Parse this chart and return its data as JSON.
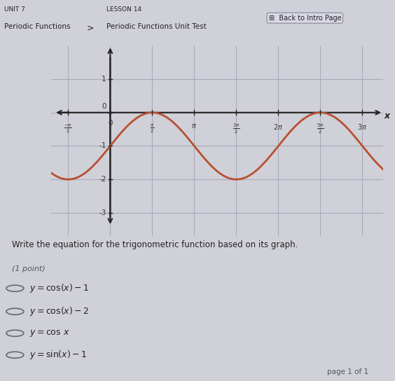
{
  "page_bg": "#d0d0d8",
  "graph_bg": "#e8e8ee",
  "header_bg": "#c8c8d2",
  "grid_color": "#aaaabb",
  "axis_color": "#222222",
  "curve_color": "#b85030",
  "curve_linewidth": 2.0,
  "text_color": "#222222",
  "label_color": "#333333",
  "subtext_color": "#555566",
  "title_top": "UNIT 7",
  "title_sub": "Periodic Functions",
  "lesson_title": "LESSON 14",
  "lesson_sub": "Periodic Functions Unit Test",
  "back_btn": "⊞  Back to Intro Page",
  "question_text": "Write the equation for the trigonometric function based on its graph.",
  "point_text": "(1 point)",
  "choice_labels": [
    "y = \\cos(x) - 1",
    "y = \\cos(x) - 2",
    "y = \\cos x",
    "y = \\sin(x) - 1"
  ],
  "page_label": "page 1 of 1",
  "xlim": [
    -2.2,
    10.2
  ],
  "ylim": [
    -3.7,
    2.0
  ],
  "yticks": [
    -3,
    -2,
    -1,
    0,
    1
  ],
  "xtick_vals": [
    -1.5707963,
    0,
    1.5707963,
    3.1415926,
    4.7123889,
    6.2831853,
    7.8539816,
    9.4247779
  ],
  "pi": 3.14159265358979
}
